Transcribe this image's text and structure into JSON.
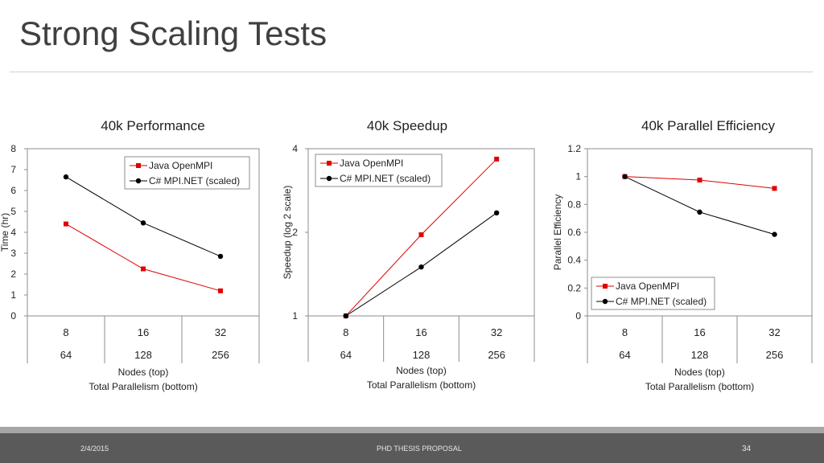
{
  "slide": {
    "title": "Strong Scaling Tests"
  },
  "footer": {
    "date": "2/4/2015",
    "center": "PHD THESIS PROPOSAL",
    "page": "34"
  },
  "chart_data": [
    {
      "type": "line",
      "title": "40k Performance",
      "ylabel": "Time (hr)",
      "ylim": [
        0,
        8
      ],
      "yticks": [
        "0",
        "1",
        "2",
        "3",
        "4",
        "5",
        "6",
        "7",
        "8"
      ],
      "x_top": [
        "8",
        "16",
        "32"
      ],
      "x_bottom": [
        "64",
        "128",
        "256"
      ],
      "xlabel_lines": [
        "Nodes (top)",
        "Total Parallelism (bottom)"
      ],
      "legend_position": "top-right",
      "series": [
        {
          "name": "Java OpenMPI",
          "color": "#e00000",
          "marker": "square",
          "values": [
            4.4,
            2.25,
            1.2
          ]
        },
        {
          "name": "C# MPI.NET (scaled)",
          "color": "#000000",
          "marker": "circle",
          "values": [
            6.65,
            4.45,
            2.85
          ]
        }
      ]
    },
    {
      "type": "line",
      "title": "40k Speedup",
      "ylabel": "Speedup (log 2 scale)",
      "yscale": "log2",
      "ylim": [
        1,
        4
      ],
      "yticks": [
        "1",
        "2",
        "4"
      ],
      "x_top": [
        "8",
        "16",
        "32"
      ],
      "x_bottom": [
        "64",
        "128",
        "256"
      ],
      "xlabel_lines": [
        "Nodes (top)",
        "Total Parallelism (bottom)"
      ],
      "legend_position": "top-left",
      "series": [
        {
          "name": "Java OpenMPI",
          "color": "#e00000",
          "marker": "square",
          "values": [
            1,
            1.96,
            3.67
          ]
        },
        {
          "name": "C# MPI.NET (scaled)",
          "color": "#000000",
          "marker": "circle",
          "values": [
            1,
            1.5,
            2.35
          ]
        }
      ]
    },
    {
      "type": "line",
      "title": "40k Parallel Efficiency",
      "ylabel": "Parallel Efficiency",
      "ylim": [
        0,
        1.2
      ],
      "yticks": [
        "0",
        "0.2",
        "0.4",
        "0.6",
        "0.8",
        "1",
        "1.2"
      ],
      "x_top": [
        "8",
        "16",
        "32"
      ],
      "x_bottom": [
        "64",
        "128",
        "256"
      ],
      "xlabel_lines": [
        "Nodes (top)",
        "Total Parallelism (bottom)"
      ],
      "legend_position": "bottom-left",
      "series": [
        {
          "name": "Java OpenMPI",
          "color": "#e00000",
          "marker": "square",
          "values": [
            1,
            0.975,
            0.915
          ]
        },
        {
          "name": "C# MPI.NET (scaled)",
          "color": "#000000",
          "marker": "circle",
          "values": [
            1,
            0.745,
            0.585
          ]
        }
      ]
    }
  ]
}
